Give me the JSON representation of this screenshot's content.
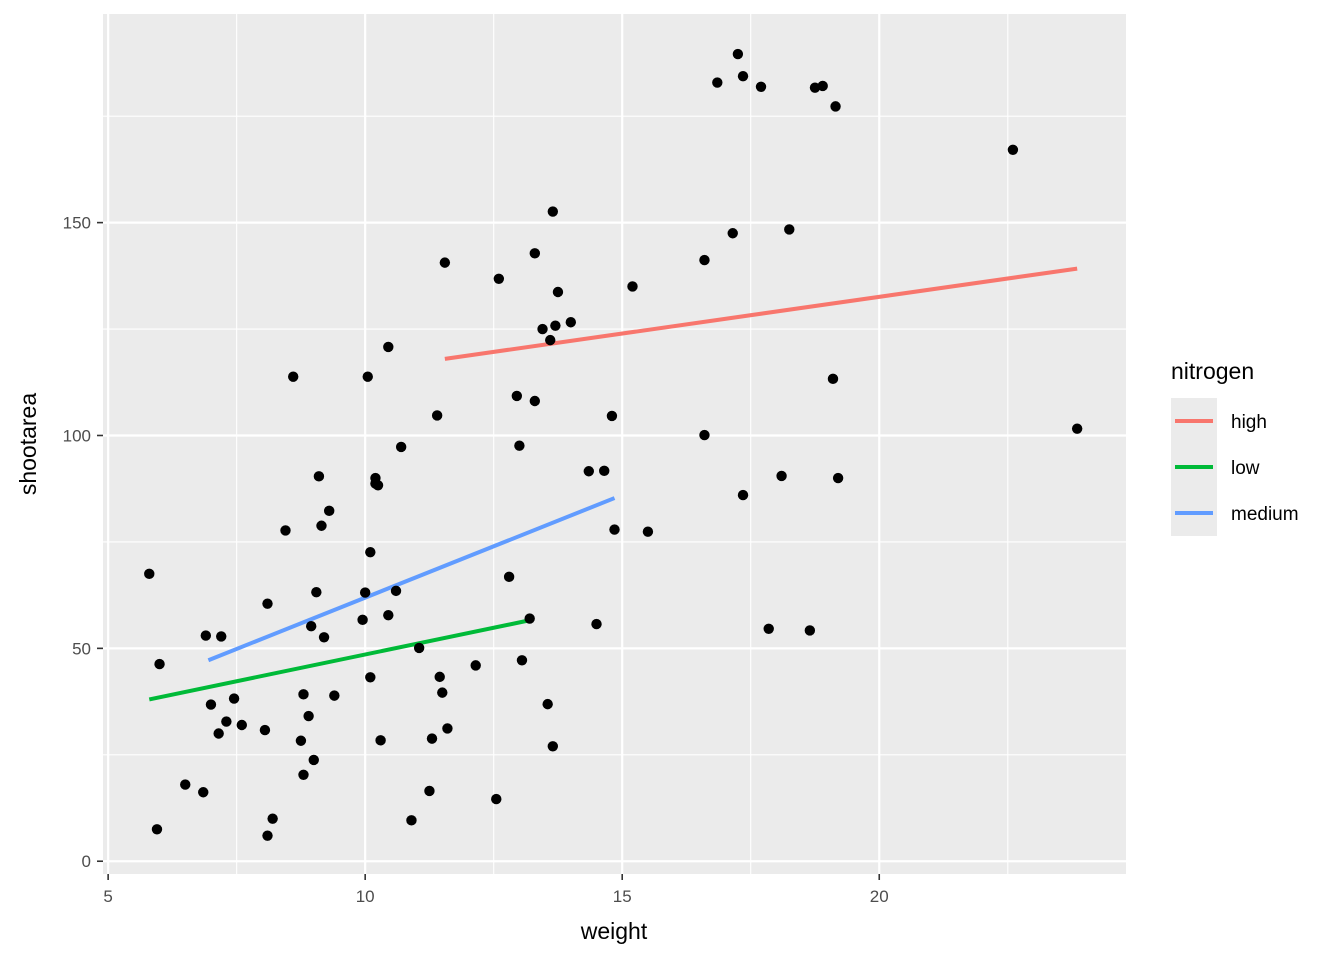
{
  "chart_data": {
    "type": "scatter",
    "xlabel": "weight",
    "ylabel": "shootarea",
    "xlim": [
      4.9,
      24.8
    ],
    "ylim": [
      -3,
      199
    ],
    "x_ticks": [
      5,
      10,
      15,
      20
    ],
    "y_ticks": [
      0,
      50,
      100,
      150
    ],
    "x_tick_labels": [
      "5",
      "10",
      "15",
      "20"
    ],
    "y_tick_labels": [
      "0",
      "50",
      "100",
      "150"
    ],
    "grid": true,
    "legend": {
      "title": "nitrogen",
      "placement": "right",
      "entries": [
        {
          "label": "high",
          "color": "#f8766d"
        },
        {
          "label": "low",
          "color": "#00ba38"
        },
        {
          "label": "medium",
          "color": "#619cff"
        }
      ]
    },
    "points": [
      [
        5.8,
        67.5
      ],
      [
        5.95,
        7.5
      ],
      [
        6.0,
        46.3
      ],
      [
        6.5,
        18.0
      ],
      [
        6.85,
        16.2
      ],
      [
        6.9,
        53.0
      ],
      [
        7.0,
        36.8
      ],
      [
        7.15,
        30.0
      ],
      [
        7.2,
        52.8
      ],
      [
        7.3,
        32.8
      ],
      [
        7.45,
        38.2
      ],
      [
        7.6,
        32.0
      ],
      [
        8.05,
        30.8
      ],
      [
        8.1,
        6.0
      ],
      [
        8.1,
        60.5
      ],
      [
        8.2,
        10.0
      ],
      [
        8.45,
        77.7
      ],
      [
        8.6,
        113.8
      ],
      [
        8.75,
        28.3
      ],
      [
        8.8,
        20.3
      ],
      [
        8.8,
        39.2
      ],
      [
        8.9,
        34.1
      ],
      [
        8.95,
        55.2
      ],
      [
        9.0,
        23.8
      ],
      [
        9.05,
        63.2
      ],
      [
        9.1,
        90.4
      ],
      [
        9.15,
        78.8
      ],
      [
        9.2,
        52.6
      ],
      [
        9.3,
        82.3
      ],
      [
        9.4,
        38.9
      ],
      [
        9.95,
        56.7
      ],
      [
        10.0,
        63.1
      ],
      [
        10.05,
        113.8
      ],
      [
        10.1,
        72.6
      ],
      [
        10.1,
        43.2
      ],
      [
        10.2,
        88.7
      ],
      [
        10.2,
        90.0
      ],
      [
        10.25,
        88.3
      ],
      [
        10.3,
        28.4
      ],
      [
        10.45,
        120.8
      ],
      [
        10.45,
        57.8
      ],
      [
        10.6,
        63.5
      ],
      [
        10.7,
        97.3
      ],
      [
        10.9,
        9.6
      ],
      [
        11.05,
        50.1
      ],
      [
        11.25,
        16.5
      ],
      [
        11.3,
        28.8
      ],
      [
        11.4,
        104.7
      ],
      [
        11.45,
        43.3
      ],
      [
        11.5,
        39.6
      ],
      [
        11.55,
        140.6
      ],
      [
        11.6,
        31.2
      ],
      [
        12.15,
        46.0
      ],
      [
        12.55,
        14.6
      ],
      [
        12.6,
        136.8
      ],
      [
        12.8,
        66.8
      ],
      [
        12.95,
        109.3
      ],
      [
        13.0,
        97.6
      ],
      [
        13.05,
        47.2
      ],
      [
        13.2,
        57.0
      ],
      [
        13.3,
        108.1
      ],
      [
        13.3,
        142.8
      ],
      [
        13.45,
        125.0
      ],
      [
        13.55,
        36.9
      ],
      [
        13.6,
        122.4
      ],
      [
        13.65,
        27.0
      ],
      [
        13.65,
        152.6
      ],
      [
        13.7,
        125.8
      ],
      [
        13.75,
        133.7
      ],
      [
        14.0,
        126.6
      ],
      [
        14.35,
        91.6
      ],
      [
        14.5,
        55.7
      ],
      [
        14.65,
        91.7
      ],
      [
        14.8,
        104.6
      ],
      [
        14.85,
        77.9
      ],
      [
        15.2,
        135.0
      ],
      [
        15.5,
        77.4
      ],
      [
        16.6,
        141.2
      ],
      [
        16.6,
        100.1
      ],
      [
        16.85,
        182.9
      ],
      [
        17.15,
        147.5
      ],
      [
        17.25,
        189.6
      ],
      [
        17.35,
        86.0
      ],
      [
        17.35,
        184.4
      ],
      [
        17.7,
        181.9
      ],
      [
        17.85,
        54.6
      ],
      [
        18.1,
        90.5
      ],
      [
        18.25,
        148.4
      ],
      [
        18.65,
        54.2
      ],
      [
        18.75,
        181.7
      ],
      [
        18.9,
        182.1
      ],
      [
        19.1,
        113.3
      ],
      [
        19.15,
        177.3
      ],
      [
        19.2,
        90.0
      ],
      [
        22.6,
        167.1
      ],
      [
        23.85,
        101.6
      ]
    ],
    "series": [
      {
        "name": "high",
        "color": "#f8766d",
        "x": [
          11.55,
          23.85
        ],
        "y": [
          118.0,
          139.2
        ]
      },
      {
        "name": "low",
        "color": "#00ba38",
        "x": [
          5.8,
          13.2
        ],
        "y": [
          38.0,
          56.6
        ]
      },
      {
        "name": "medium",
        "color": "#619cff",
        "x": [
          6.95,
          14.85
        ],
        "y": [
          47.2,
          85.3
        ]
      }
    ]
  }
}
